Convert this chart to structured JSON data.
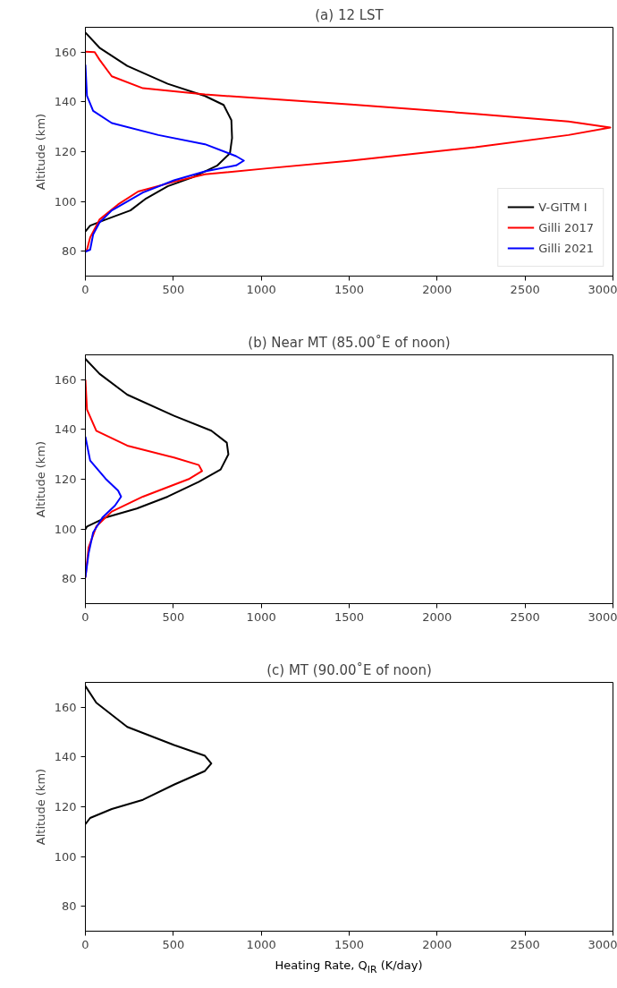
{
  "chart_data": [
    {
      "type": "line",
      "title": "(a) 12 LST",
      "ylabel": "Altitude (km)",
      "xlim": [
        0,
        3000
      ],
      "ylim": [
        70,
        170
      ],
      "xticks": [
        0,
        500,
        1000,
        1500,
        2000,
        2500,
        3000
      ],
      "yticks": [
        80,
        100,
        120,
        140,
        160
      ],
      "grid": false,
      "legend": "bottom right",
      "line_style": "solid",
      "series": [
        {
          "name": "V-GITM I",
          "color": "#000000",
          "x": [
            0,
            80,
            238,
            468,
            680,
            786,
            830,
            834,
            822,
            751,
            610,
            468,
            345,
            256,
            115,
            27,
            0
          ],
          "values": [
            167.9,
            161.8,
            154.5,
            147.3,
            142.4,
            138.8,
            132.7,
            125.5,
            119.4,
            114.5,
            109.7,
            106.1,
            101.2,
            96.4,
            92.7,
            90.3,
            87.9
          ]
        },
        {
          "name": "Gilli 2017",
          "color": "#ff0000",
          "x": [
            0,
            53,
            80,
            150,
            327,
            680,
            1510,
            2217,
            2747,
            2985,
            2747,
            2217,
            1510,
            1034,
            680,
            504,
            300,
            186,
            80,
            27,
            9,
            0
          ],
          "values": [
            160.2,
            160,
            157,
            150.3,
            145.5,
            143,
            139,
            135.2,
            132.1,
            129.7,
            126.7,
            121.8,
            116.4,
            113.3,
            110.9,
            107.9,
            104,
            98.8,
            92.7,
            85.5,
            80.6,
            80
          ]
        },
        {
          "name": "Gilli 2021",
          "color": "#0000ff",
          "x": [
            0,
            9,
            44,
            150,
            415,
            680,
            857,
            901,
            857,
            680,
            504,
            327,
            150,
            80,
            44,
            27,
            0
          ],
          "values": [
            155,
            142.4,
            136.4,
            131.5,
            126.7,
            123,
            118.2,
            116.4,
            114.5,
            112.1,
            108.5,
            103.6,
            96.4,
            91.5,
            86.7,
            80.6,
            79.8
          ]
        }
      ]
    },
    {
      "type": "line",
      "title": "(b) Near MT (85.00˚E of noon)",
      "ylabel": "Altitude (km)",
      "xlim": [
        0,
        3000
      ],
      "ylim": [
        70,
        170
      ],
      "xticks": [
        0,
        500,
        1000,
        1500,
        2000,
        2500,
        3000
      ],
      "yticks": [
        80,
        100,
        120,
        140,
        160
      ],
      "grid": false,
      "line_style": "solid",
      "series": [
        {
          "color": "#000000",
          "x": [
            0,
            80,
            238,
            504,
            716,
            804,
            813,
            769,
            645,
            468,
            292,
            115,
            9,
            0
          ],
          "values": [
            168.4,
            162.4,
            154,
            145.5,
            139.5,
            134.7,
            130,
            123.9,
            119,
            113,
            108.2,
            104.6,
            101,
            99.8
          ]
        },
        {
          "color": "#ff0000",
          "x": [
            0,
            9,
            62,
            238,
            504,
            645,
            663,
            592,
            327,
            150,
            62,
            18,
            0
          ],
          "values": [
            160,
            148,
            139.5,
            133.5,
            128.7,
            125.7,
            123.3,
            120.2,
            113,
            107,
            101,
            92.5,
            80.5
          ]
        },
        {
          "color": "#0000ff",
          "x": [
            0,
            27,
            115,
            186,
            203,
            168,
            97,
            44,
            18,
            0
          ],
          "values": [
            137.1,
            127.5,
            120.2,
            115.4,
            113,
            109.4,
            104.6,
            98.6,
            90.1,
            80.5
          ]
        }
      ]
    },
    {
      "type": "line",
      "title": "(c) MT (90.00˚E of noon)",
      "ylabel": "Altitude (km)",
      "xlabel": "Heating Rate, Q$_{IR}$ (K/day)",
      "xlim": [
        0,
        3000
      ],
      "ylim": [
        70,
        170
      ],
      "xticks": [
        0,
        500,
        1000,
        1500,
        2000,
        2500,
        3000
      ],
      "yticks": [
        80,
        100,
        120,
        140,
        160
      ],
      "grid": false,
      "line_style": "solid",
      "series": [
        {
          "color": "#000000",
          "x": [
            0,
            62,
            238,
            504,
            680,
            716,
            680,
            504,
            327,
            150,
            27,
            0
          ],
          "values": [
            168.5,
            161.8,
            152.1,
            144.8,
            140.5,
            137.4,
            134.4,
            128.9,
            122.8,
            119.1,
            115.5,
            113
          ]
        }
      ]
    }
  ]
}
